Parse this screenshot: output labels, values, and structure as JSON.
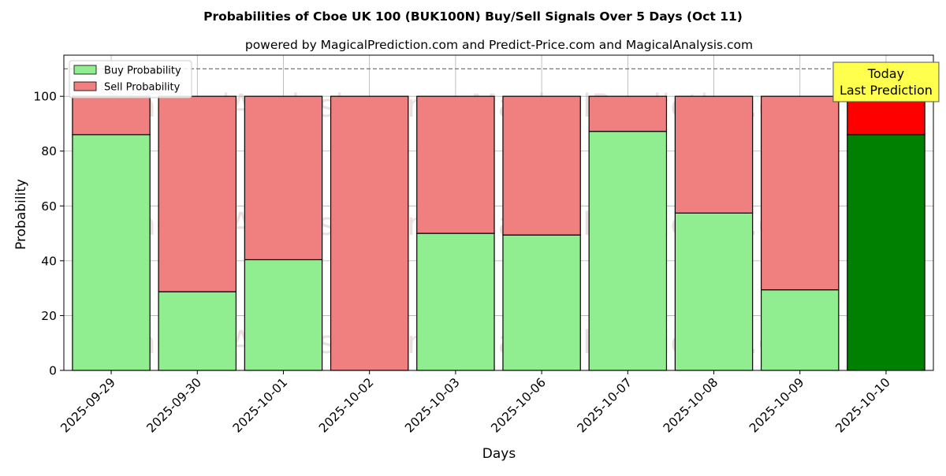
{
  "chart_data": {
    "type": "bar",
    "stacked": true,
    "title": "Probabilities of Cboe UK 100 (BUK100N) Buy/Sell Signals Over 5 Days (Oct 11)",
    "subtitle": "powered by MagicalPrediction.com and Predict-Price.com and MagicalAnalysis.com",
    "xlabel": "Days",
    "ylabel": "Probability",
    "ylim": [
      0,
      115
    ],
    "yticks": [
      0,
      20,
      40,
      60,
      80,
      100
    ],
    "grid": true,
    "legend_position": "top-left",
    "categories": [
      "2025-09-29",
      "2025-09-30",
      "2025-10-01",
      "2025-10-02",
      "2025-10-03",
      "2025-10-06",
      "2025-10-07",
      "2025-10-08",
      "2025-10-09",
      "2025-10-10"
    ],
    "series": [
      {
        "name": "Buy Probability",
        "color": "#90ee90",
        "highlight_color": "#008000",
        "values": [
          86,
          28.7,
          40.4,
          0,
          50,
          49.4,
          87.2,
          57.4,
          29.4,
          86
        ]
      },
      {
        "name": "Sell Probability",
        "color": "#f08080",
        "highlight_color": "#ff0000",
        "values": [
          14,
          71.3,
          59.6,
          100,
          50,
          50.6,
          12.8,
          42.6,
          70.6,
          14
        ]
      }
    ],
    "highlight_index": 9,
    "reference_line": {
      "y": 110,
      "style": "dashed"
    },
    "annotation": {
      "lines": [
        "Today",
        "Last Prediction"
      ],
      "category_index": 9,
      "background": "#ffff4d"
    },
    "watermarks": [
      "MagicalAnalysis.com",
      "MagicalPrediction.com"
    ]
  }
}
